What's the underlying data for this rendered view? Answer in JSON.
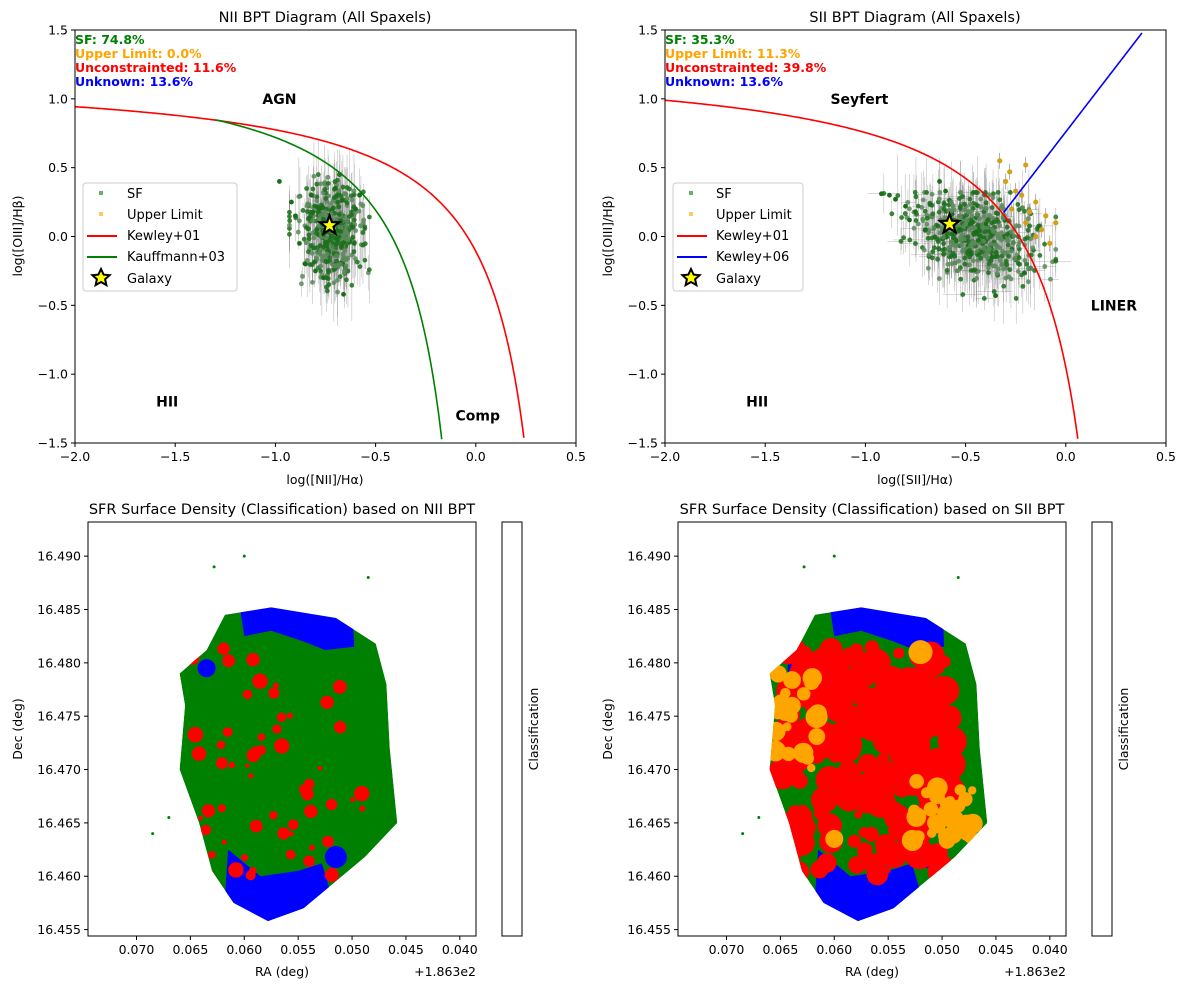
{
  "chart_data": [
    {
      "type": "scatter",
      "title": "NII BPT Diagram (All Spaxels)",
      "xlabel": "log([NII]/Hα)",
      "ylabel": "log([OIII]/Hβ)",
      "xlim": [
        -2.0,
        0.5
      ],
      "ylim": [
        -1.5,
        1.5
      ],
      "xticks": [
        -2.0,
        -1.5,
        -1.0,
        -0.5,
        0.0,
        0.5
      ],
      "xtick_labels": [
        "−2.0",
        "−1.5",
        "−1.0",
        "−0.5",
        "0.0",
        "0.5"
      ],
      "yticks": [
        1.5,
        1.0,
        0.5,
        0.0,
        -0.5,
        -1.0,
        -1.5
      ],
      "ytick_labels": [
        "1.5",
        "1.0",
        "0.5",
        "0.0",
        "−0.5",
        "−1.0",
        "−1.5"
      ],
      "stats": [
        {
          "text": "SF: 74.8%",
          "color": "#008000"
        },
        {
          "text": "Upper Limit: 0.0%",
          "color": "#FFA500"
        },
        {
          "text": "Unconstrainted: 11.6%",
          "color": "#FF0000"
        },
        {
          "text": "Unknown: 13.6%",
          "color": "#0000FF"
        }
      ],
      "region_labels": [
        {
          "text": "AGN",
          "x": -0.98,
          "y": 1.0
        },
        {
          "text": "HII",
          "x": -1.54,
          "y": -1.2
        },
        {
          "text": "Comp",
          "x": 0.01,
          "y": -1.3
        }
      ],
      "legend": {
        "placement": "center-left",
        "entries": [
          {
            "label": "SF",
            "kind": "square",
            "color": "#008000"
          },
          {
            "label": "Upper Limit",
            "kind": "square",
            "color": "#FFA500"
          },
          {
            "label": "Kewley+01",
            "kind": "line",
            "color": "#FF0000"
          },
          {
            "label": "Kauffmann+03",
            "kind": "line",
            "color": "#008000"
          },
          {
            "label": "Galaxy",
            "kind": "star",
            "color": "#FFFF00"
          }
        ]
      },
      "galaxy_point": {
        "x": -0.73,
        "y": 0.08
      },
      "sf_cloud": {
        "x_range": [
          -0.93,
          -0.5
        ],
        "y_range": [
          -0.45,
          0.45
        ],
        "center": [
          -0.72,
          0.05
        ]
      },
      "upper_limit_points": [],
      "curves": [
        {
          "name": "Kewley+01",
          "color": "#FF0000",
          "formula": "0.61/(x-0.47)+1.19",
          "x_range": [
            -2.0,
            0.24
          ]
        },
        {
          "name": "Kauffmann+03",
          "color": "#008000",
          "formula": "0.61/(x-0.05)+1.3",
          "x_range": [
            -1.3,
            -0.17
          ]
        }
      ]
    },
    {
      "type": "scatter",
      "title": "SII BPT Diagram (All Spaxels)",
      "xlabel": "log([SII]/Hα)",
      "ylabel": "log([OIII]/Hβ)",
      "xlim": [
        -2.0,
        0.5
      ],
      "ylim": [
        -1.5,
        1.5
      ],
      "xticks": [
        -2.0,
        -1.5,
        -1.0,
        -0.5,
        0.0,
        0.5
      ],
      "xtick_labels": [
        "−2.0",
        "−1.5",
        "−1.0",
        "−0.5",
        "0.0",
        "0.5"
      ],
      "yticks": [
        1.5,
        1.0,
        0.5,
        0.0,
        -0.5,
        -1.0,
        -1.5
      ],
      "ytick_labels": [
        "1.5",
        "1.0",
        "0.5",
        "0.0",
        "−0.5",
        "−1.0",
        "−1.5"
      ],
      "stats": [
        {
          "text": "SF: 35.3%",
          "color": "#008000"
        },
        {
          "text": "Upper Limit: 11.3%",
          "color": "#FFA500"
        },
        {
          "text": "Unconstrainted: 39.8%",
          "color": "#FF0000"
        },
        {
          "text": "Unknown: 13.6%",
          "color": "#0000FF"
        }
      ],
      "region_labels": [
        {
          "text": "Seyfert",
          "x": -1.03,
          "y": 1.0
        },
        {
          "text": "HII",
          "x": -1.54,
          "y": -1.2
        },
        {
          "text": "LINER",
          "x": 0.24,
          "y": -0.5
        }
      ],
      "legend": {
        "placement": "center-left",
        "entries": [
          {
            "label": "SF",
            "kind": "square",
            "color": "#008000"
          },
          {
            "label": "Upper Limit",
            "kind": "square",
            "color": "#FFA500"
          },
          {
            "label": "Kewley+01",
            "kind": "line",
            "color": "#FF0000"
          },
          {
            "label": "Kewley+06",
            "kind": "line",
            "color": "#0000FF"
          },
          {
            "label": "Galaxy",
            "kind": "star",
            "color": "#FFFF00"
          }
        ]
      },
      "galaxy_point": {
        "x": -0.58,
        "y": 0.09
      },
      "sf_cloud": {
        "x_range": [
          -0.95,
          -0.05
        ],
        "y_range": [
          -0.45,
          0.32
        ],
        "center": [
          -0.45,
          0.0
        ]
      },
      "upper_limit_points": [
        {
          "x": -0.33,
          "y": 0.55
        },
        {
          "x": -0.28,
          "y": 0.47
        },
        {
          "x": -0.2,
          "y": 0.52
        },
        {
          "x": -0.25,
          "y": 0.33
        },
        {
          "x": -0.22,
          "y": 0.3
        },
        {
          "x": -0.15,
          "y": 0.25
        },
        {
          "x": -0.18,
          "y": 0.18
        },
        {
          "x": -0.1,
          "y": 0.15
        },
        {
          "x": -0.12,
          "y": 0.05
        },
        {
          "x": -0.05,
          "y": 0.1
        },
        {
          "x": -0.08,
          "y": -0.05
        },
        {
          "x": -0.2,
          "y": 0.1
        },
        {
          "x": -0.27,
          "y": 0.2
        },
        {
          "x": -0.3,
          "y": 0.4
        },
        {
          "x": -0.15,
          "y": 0.0
        }
      ],
      "curves": [
        {
          "name": "Kewley+01",
          "color": "#FF0000",
          "formula": "0.72/(x-0.32)+1.30",
          "x_range": [
            -2.0,
            0.06
          ]
        },
        {
          "name": "Kewley+06",
          "color": "#0000FF",
          "formula": "1.89x+0.76",
          "x_range": [
            -0.31,
            0.38
          ]
        }
      ]
    },
    {
      "type": "heatmap",
      "title": "SFR Surface Density (Classification) based on NII BPT",
      "xlabel": "RA (deg)",
      "ylabel": "Dec (deg)",
      "xlim": [
        0.0745,
        0.0385
      ],
      "ylim": [
        16.4544,
        16.4932
      ],
      "xticks": [
        0.07,
        0.065,
        0.06,
        0.055,
        0.05,
        0.045,
        0.04
      ],
      "xtick_labels": [
        "0.070",
        "0.065",
        "0.060",
        "0.055",
        "0.050",
        "0.045",
        "0.040"
      ],
      "x_offset_text": "+1.863e2",
      "yticks": [
        16.49,
        16.485,
        16.48,
        16.475,
        16.47,
        16.465,
        16.46,
        16.455
      ],
      "ytick_labels": [
        "16.490",
        "16.485",
        "16.480",
        "16.475",
        "16.470",
        "16.465",
        "16.460",
        "16.455"
      ],
      "colorbar": {
        "label": "Classification",
        "colors": [
          "#008000",
          "#FFA500",
          "#FF0000",
          "#0000FF"
        ]
      },
      "class_fractions": {
        "SF": 74.8,
        "Upper Limit": 0.0,
        "Unconstrainted": 11.6,
        "Unknown": 13.6
      }
    },
    {
      "type": "heatmap",
      "title": "SFR Surface Density (Classification) based on SII BPT",
      "xlabel": "RA (deg)",
      "ylabel": "Dec (deg)",
      "xlim": [
        0.0745,
        0.0385
      ],
      "ylim": [
        16.4544,
        16.4932
      ],
      "xticks": [
        0.07,
        0.065,
        0.06,
        0.055,
        0.05,
        0.045,
        0.04
      ],
      "xtick_labels": [
        "0.070",
        "0.065",
        "0.060",
        "0.055",
        "0.050",
        "0.045",
        "0.040"
      ],
      "x_offset_text": "+1.863e2",
      "yticks": [
        16.49,
        16.485,
        16.48,
        16.475,
        16.47,
        16.465,
        16.46,
        16.455
      ],
      "ytick_labels": [
        "16.490",
        "16.485",
        "16.480",
        "16.475",
        "16.470",
        "16.465",
        "16.460",
        "16.455"
      ],
      "colorbar": {
        "label": "Classification",
        "colors": [
          "#008000",
          "#FFA500",
          "#FF0000",
          "#0000FF"
        ]
      },
      "class_fractions": {
        "SF": 35.3,
        "Upper Limit": 11.3,
        "Unconstrainted": 39.8,
        "Unknown": 13.6
      }
    }
  ]
}
